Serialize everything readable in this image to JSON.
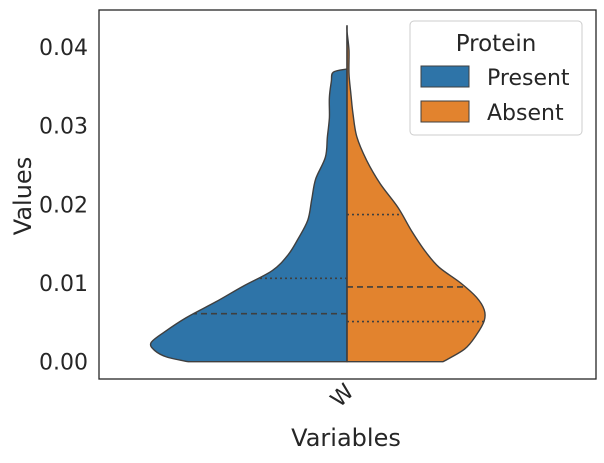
{
  "chart_data": {
    "type": "violin",
    "title": "",
    "xlabel": "Variables",
    "ylabel": "Values",
    "categories": [
      "W"
    ],
    "ylim": [
      -0.0022,
      0.0447
    ],
    "yticks": [
      0.0,
      0.01,
      0.02,
      0.03,
      0.04
    ],
    "ytick_labels": [
      "0.00",
      "0.01",
      "0.02",
      "0.03",
      "0.04"
    ],
    "grid": false,
    "legend": {
      "title": "Protein",
      "placement": "top-right",
      "entries": [
        {
          "label": "Present",
          "color": "#2e74a8"
        },
        {
          "label": "Absent",
          "color": "#e2832e"
        }
      ]
    },
    "series": [
      {
        "name": "Present",
        "side": "left",
        "color": "#2e74a8",
        "range": [
          0.0,
          0.0372
        ],
        "density_profile": [
          [
            0.0,
            0.81
          ],
          [
            0.0006,
            0.92
          ],
          [
            0.0014,
            0.98
          ],
          [
            0.0024,
            1.0
          ],
          [
            0.0038,
            0.93
          ],
          [
            0.0056,
            0.82
          ],
          [
            0.0076,
            0.67
          ],
          [
            0.0096,
            0.53
          ],
          [
            0.0116,
            0.38
          ],
          [
            0.0136,
            0.3
          ],
          [
            0.0156,
            0.25
          ],
          [
            0.018,
            0.2
          ],
          [
            0.0206,
            0.18
          ],
          [
            0.0232,
            0.16
          ],
          [
            0.026,
            0.11
          ],
          [
            0.0286,
            0.1
          ],
          [
            0.031,
            0.09
          ],
          [
            0.0336,
            0.09
          ],
          [
            0.0356,
            0.08
          ],
          [
            0.0368,
            0.07
          ],
          [
            0.0372,
            0.0
          ]
        ],
        "quartiles": {
          "q1": null,
          "median": 0.0061,
          "q3": 0.0106
        }
      },
      {
        "name": "Absent",
        "side": "right",
        "color": "#e2832e",
        "range": [
          0.0,
          0.0427
        ],
        "density_profile": [
          [
            0.0,
            0.49
          ],
          [
            0.0016,
            0.6
          ],
          [
            0.0034,
            0.66
          ],
          [
            0.0052,
            0.7
          ],
          [
            0.0066,
            0.7
          ],
          [
            0.0082,
            0.66
          ],
          [
            0.01,
            0.58
          ],
          [
            0.012,
            0.47
          ],
          [
            0.014,
            0.4
          ],
          [
            0.0166,
            0.33
          ],
          [
            0.0196,
            0.26
          ],
          [
            0.0226,
            0.17
          ],
          [
            0.0256,
            0.1
          ],
          [
            0.0286,
            0.05
          ],
          [
            0.0316,
            0.03
          ],
          [
            0.034,
            0.02
          ],
          [
            0.0366,
            0.01
          ],
          [
            0.0396,
            0.01
          ],
          [
            0.042,
            0.0
          ],
          [
            0.0427,
            0.0
          ]
        ],
        "quartiles": {
          "q1": 0.0051,
          "median": 0.0095,
          "q3": 0.0187
        }
      }
    ]
  }
}
